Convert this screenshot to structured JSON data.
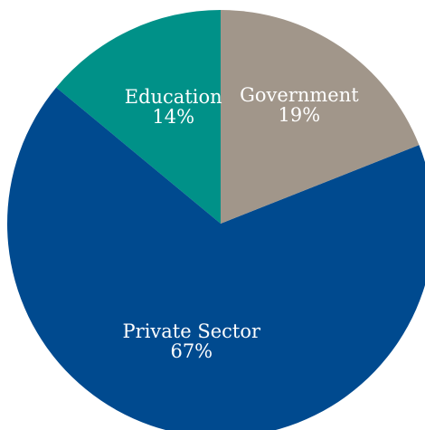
{
  "chart_data": {
    "type": "pie",
    "title": "",
    "start_angle_deg": 90,
    "direction": "counterclockwise",
    "slices": [
      {
        "name": "Education",
        "value": 14,
        "label": "Education",
        "pct_label": "14%",
        "color": "#009188"
      },
      {
        "name": "Private Sector",
        "value": 67,
        "label": "Private Sector",
        "pct_label": "67%",
        "color": "#004A8F"
      },
      {
        "name": "Government",
        "value": 19,
        "label": "Government",
        "pct_label": "19%",
        "color": "#A1968A"
      }
    ]
  }
}
